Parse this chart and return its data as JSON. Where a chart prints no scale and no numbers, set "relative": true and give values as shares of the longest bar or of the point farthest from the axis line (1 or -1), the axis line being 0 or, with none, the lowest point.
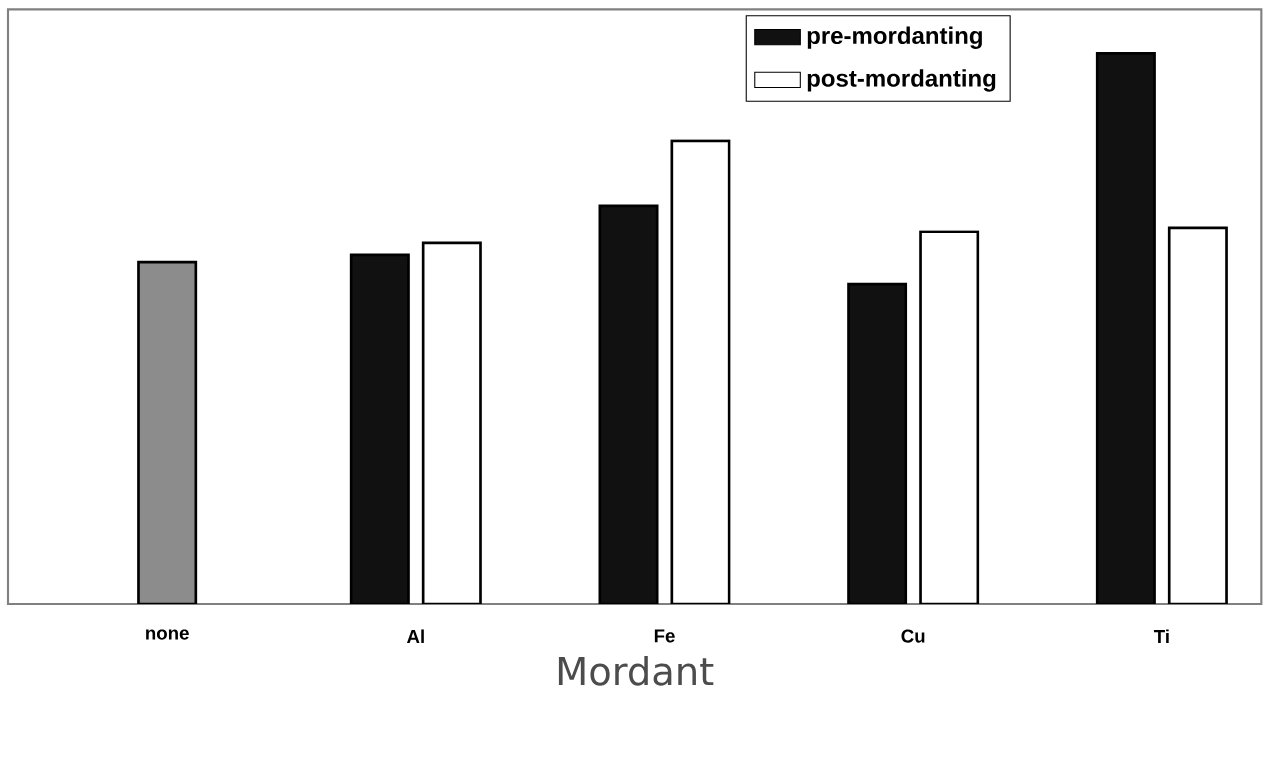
{
  "chart_data": {
    "type": "bar",
    "relative": true,
    "xlabel": "Mordant",
    "categories": [
      "none",
      "Al",
      "Fe",
      "Cu",
      "Ti"
    ],
    "series": [
      {
        "color": "#8c8c8c",
        "values": [
          0.621,
          null,
          null,
          null,
          null
        ]
      },
      {
        "name": "pre-mordanting",
        "color": "#111111",
        "values": [
          null,
          0.634,
          0.723,
          0.581,
          1
        ]
      },
      {
        "name": "post-mordanting",
        "color": "#ffffff",
        "values": [
          null,
          0.656,
          0.841,
          0.676,
          0.683
        ]
      }
    ],
    "legend": "top right"
  }
}
